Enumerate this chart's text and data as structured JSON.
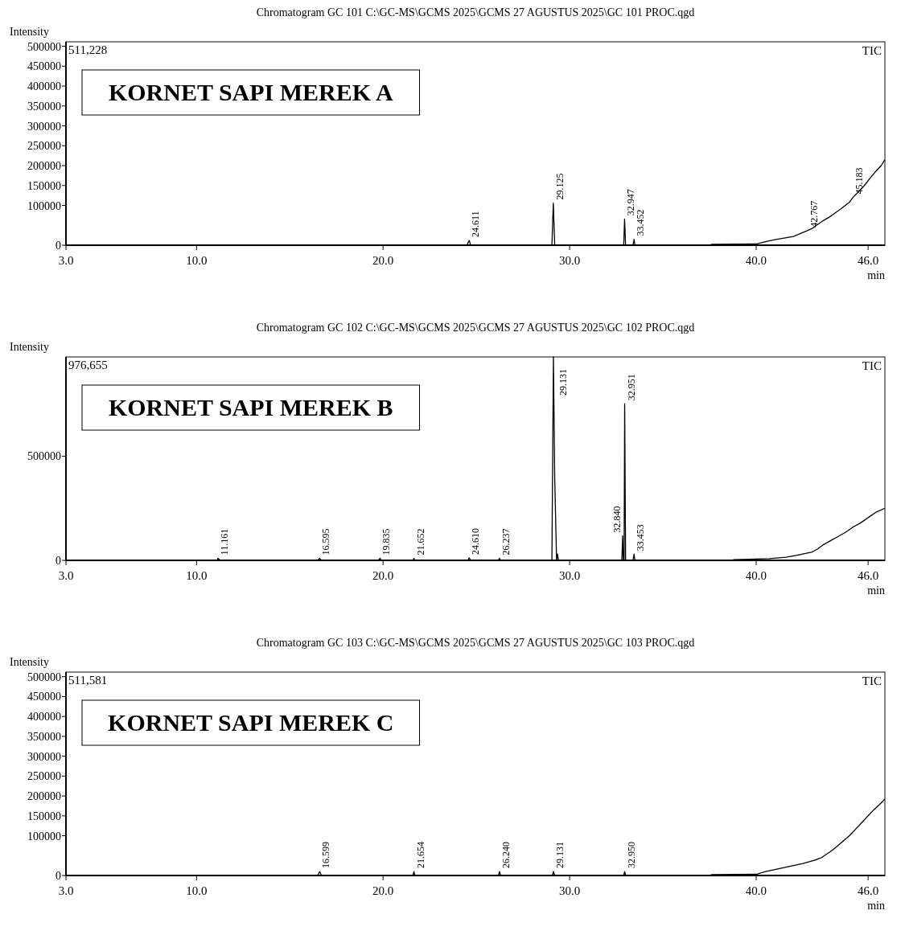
{
  "chart_data": [
    {
      "type": "line",
      "title": "Chromatogram GC 101 C:\\GC-MS\\GCMS 2025\\GCMS 27 AGUSTUS 2025\\GC 101 PROC.qgd",
      "subtitle": "KORNET SAPI MEREK A",
      "xlabel": "min",
      "ylabel": "Intensity",
      "legend": "top right",
      "xlim": [
        3,
        46.9
      ],
      "xticks": [
        {
          "value": 3,
          "label": "3.0"
        },
        {
          "value": 10,
          "label": "10.0"
        },
        {
          "value": 20,
          "label": "20.0"
        },
        {
          "value": 30,
          "label": "30.0"
        },
        {
          "value": 40,
          "label": "40.0"
        },
        {
          "value": 46,
          "label": "46.0"
        }
      ],
      "ylim": [
        0,
        511228
      ],
      "yticks": [
        0,
        100000,
        150000,
        200000,
        250000,
        300000,
        350000,
        400000,
        450000,
        500000
      ],
      "series": [
        {
          "name": "TIC",
          "color": "#000000",
          "x": [
            3,
            24.5,
            24.611,
            24.7,
            29.05,
            29.125,
            29.2,
            32.9,
            32.947,
            33.0,
            33.4,
            33.452,
            33.5,
            37.5,
            37.6,
            40.0,
            40.5,
            41.0,
            42.0,
            42.767,
            43.0,
            43.3,
            43.6,
            43.9,
            44.2,
            44.5,
            45.0,
            45.183,
            45.5,
            45.8,
            46.1,
            46.4,
            46.7,
            46.9
          ],
          "values": [
            0,
            0,
            12000,
            0,
            0,
            106000,
            0,
            0,
            66000,
            0,
            0,
            15000,
            0,
            0,
            2000,
            3000,
            9000,
            14000,
            22000,
            37000,
            42000,
            52000,
            62000,
            70000,
            80000,
            90000,
            108000,
            120000,
            135000,
            150000,
            168000,
            185000,
            200000,
            215000
          ]
        }
      ],
      "annotations": [
        "511,228",
        {
          "text": "24.611",
          "x": 24.611,
          "y": 12000
        },
        {
          "text": "29.125",
          "x": 29.125,
          "y": 106000
        },
        {
          "text": "32.947",
          "x": 32.947,
          "y": 66000
        },
        {
          "text": "33.452",
          "x": 33.452,
          "y": 15000
        },
        {
          "text": "42.767",
          "x": 42.767,
          "y": 37000
        },
        {
          "text": "45.183",
          "x": 45.183,
          "y": 120000
        }
      ]
    },
    {
      "type": "line",
      "title": "Chromatogram GC 102 C:\\GC-MS\\GCMS 2025\\GCMS 27 AGUSTUS 2025\\GC 102 PROC.qgd",
      "subtitle": "KORNET SAPI MEREK B",
      "xlabel": "min",
      "ylabel": "Intensity",
      "legend": "top right",
      "xlim": [
        3,
        46.9
      ],
      "xticks": [
        {
          "value": 3,
          "label": "3.0"
        },
        {
          "value": 10,
          "label": "10.0"
        },
        {
          "value": 20,
          "label": "20.0"
        },
        {
          "value": 30,
          "label": "30.0"
        },
        {
          "value": 40,
          "label": "40.0"
        },
        {
          "value": 46,
          "label": "46.0"
        }
      ],
      "ylim": [
        0,
        976655
      ],
      "yticks": [
        0,
        500000
      ],
      "series": [
        {
          "name": "TIC",
          "color": "#000000",
          "x": [
            3,
            11.1,
            11.161,
            11.25,
            16.5,
            16.595,
            16.7,
            19.75,
            19.835,
            19.9,
            21.6,
            21.652,
            21.7,
            24.55,
            24.61,
            24.7,
            26.18,
            26.237,
            26.3,
            29.05,
            29.131,
            29.2,
            29.3,
            29.35,
            29.4,
            32.8,
            32.84,
            32.88,
            32.92,
            32.951,
            33.0,
            33.4,
            33.453,
            33.5,
            38.7,
            38.8,
            40.7,
            41.6,
            42.2,
            43.0,
            43.3,
            43.6,
            44.0,
            44.4,
            44.8,
            45.2,
            45.6,
            46.0,
            46.4,
            46.9
          ],
          "values": [
            0,
            0,
            10000,
            0,
            0,
            10000,
            0,
            0,
            10000,
            0,
            0,
            10000,
            0,
            0,
            12000,
            0,
            0,
            10000,
            0,
            0,
            976655,
            400000,
            0,
            30000,
            0,
            0,
            118000,
            0,
            0,
            752000,
            0,
            0,
            30000,
            0,
            0,
            3000,
            8000,
            15000,
            25000,
            40000,
            55000,
            75000,
            95000,
            115000,
            135000,
            160000,
            180000,
            205000,
            230000,
            250000
          ]
        }
      ],
      "annotations": [
        "976,655",
        {
          "text": "11.161",
          "x": 11.161,
          "y": 10000
        },
        {
          "text": "16.595",
          "x": 16.595,
          "y": 10000
        },
        {
          "text": "19.835",
          "x": 19.835,
          "y": 10000
        },
        {
          "text": "21.652",
          "x": 21.652,
          "y": 10000
        },
        {
          "text": "24.610",
          "x": 24.61,
          "y": 12000
        },
        {
          "text": "26.237",
          "x": 26.237,
          "y": 10000
        },
        {
          "text": "29.131",
          "x": 29.131,
          "y": 976655
        },
        {
          "text": "32.840",
          "x": 32.84,
          "y": 118000
        },
        {
          "text": "32.951",
          "x": 32.951,
          "y": 752000
        },
        {
          "text": "33.453",
          "x": 33.453,
          "y": 30000
        }
      ]
    },
    {
      "type": "line",
      "title": "Chromatogram GC 103 C:\\GC-MS\\GCMS 2025\\GCMS 27 AGUSTUS 2025\\GC 103 PROC.qgd",
      "subtitle": "KORNET SAPI MEREK C",
      "xlabel": "min",
      "ylabel": "Intensity",
      "legend": "top right",
      "xlim": [
        3,
        46.9
      ],
      "xticks": [
        {
          "value": 3,
          "label": "3.0"
        },
        {
          "value": 10,
          "label": "10.0"
        },
        {
          "value": 20,
          "label": "20.0"
        },
        {
          "value": 30,
          "label": "30.0"
        },
        {
          "value": 40,
          "label": "40.0"
        },
        {
          "value": 46,
          "label": "46.0"
        }
      ],
      "ylim": [
        0,
        511581
      ],
      "yticks": [
        0,
        100000,
        150000,
        200000,
        250000,
        300000,
        350000,
        400000,
        450000,
        500000
      ],
      "series": [
        {
          "name": "TIC",
          "color": "#000000",
          "x": [
            3,
            16.5,
            16.599,
            16.7,
            21.6,
            21.654,
            21.7,
            26.18,
            26.24,
            26.3,
            29.08,
            29.131,
            29.2,
            32.9,
            32.95,
            33.0,
            37.5,
            37.6,
            40.0,
            40.5,
            41.0,
            42.0,
            42.5,
            43.117,
            43.5,
            43.98,
            44.3,
            44.7,
            45.0,
            45.3,
            45.6,
            46.0,
            46.3,
            46.6,
            46.9
          ],
          "values": [
            0,
            0,
            10000,
            0,
            0,
            10000,
            0,
            0,
            10000,
            0,
            0,
            10000,
            0,
            0,
            10000,
            0,
            0,
            2000,
            3000,
            10000,
            15000,
            25000,
            30000,
            38000,
            45000,
            60000,
            72000,
            88000,
            100000,
            115000,
            130000,
            150000,
            165000,
            178000,
            192000
          ]
        }
      ],
      "annotations": [
        "511,581",
        {
          "text": "16.599",
          "x": 16.599,
          "y": 10000
        },
        {
          "text": "21.654",
          "x": 21.654,
          "y": 10000
        },
        {
          "text": "26.240",
          "x": 26.24,
          "y": 10000
        },
        {
          "text": "29.131",
          "x": 29.131,
          "y": 10000
        },
        {
          "text": "32.950",
          "x": 32.95,
          "y": 10000
        }
      ]
    }
  ]
}
